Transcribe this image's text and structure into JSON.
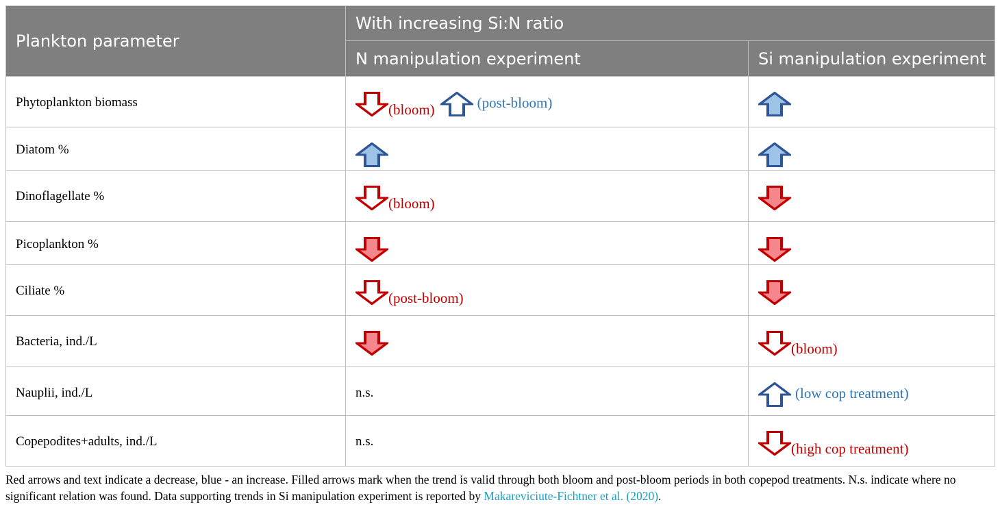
{
  "header": {
    "col1": "Plankton parameter",
    "group": "With increasing Si:N ratio",
    "col2": "N manipulation experiment",
    "col3": "Si manipulation experiment"
  },
  "colors": {
    "decrease": "#c00000",
    "decrease_fill": "#f4868c",
    "increase": "#2f5597",
    "increase_fill": "#9dc3e6",
    "header_bg": "#7f7f7f"
  },
  "rows": [
    {
      "param": "Phytoplankton biomass",
      "n": [
        {
          "dir": "down",
          "filled": false,
          "note": "(bloom)"
        },
        {
          "dir": "up",
          "filled": false,
          "note": "(post-bloom)"
        }
      ],
      "si": [
        {
          "dir": "up",
          "filled": true,
          "note": ""
        }
      ]
    },
    {
      "param": "Diatom %",
      "n": [
        {
          "dir": "up",
          "filled": true,
          "note": ""
        }
      ],
      "si": [
        {
          "dir": "up",
          "filled": true,
          "note": ""
        }
      ]
    },
    {
      "param": "Dinoflagellate %",
      "n": [
        {
          "dir": "down",
          "filled": false,
          "note": "(bloom)"
        }
      ],
      "si": [
        {
          "dir": "down",
          "filled": true,
          "note": ""
        }
      ]
    },
    {
      "param": "Picoplankton %",
      "n": [
        {
          "dir": "down",
          "filled": true,
          "note": ""
        }
      ],
      "si": [
        {
          "dir": "down",
          "filled": true,
          "note": ""
        }
      ]
    },
    {
      "param": "Ciliate %",
      "n": [
        {
          "dir": "down",
          "filled": false,
          "note": "(post-bloom)"
        }
      ],
      "si": [
        {
          "dir": "down",
          "filled": true,
          "note": ""
        }
      ]
    },
    {
      "param": "Bacteria, ind./L",
      "n": [
        {
          "dir": "down",
          "filled": true,
          "note": ""
        }
      ],
      "si": [
        {
          "dir": "down",
          "filled": false,
          "note": "(bloom)"
        }
      ]
    },
    {
      "param": "Nauplii, ind./L",
      "n_text": "n.s.",
      "si": [
        {
          "dir": "up",
          "filled": false,
          "note": "(low cop treatment)"
        }
      ]
    },
    {
      "param": "Copepodites+adults, ind./L",
      "n_text": "n.s.",
      "si": [
        {
          "dir": "down",
          "filled": false,
          "note": "(high cop treatment)"
        }
      ]
    }
  ],
  "footnote": {
    "text": "Red arrows and text indicate a decrease, blue - an increase. Filled arrows mark when the trend is valid through both bloom and post-bloom periods in both copepod treatments. N.s. indicate where no significant relation was found. Data supporting trends in Si manipulation experiment is reported by ",
    "link": "Makareviciute-Fichtner et al. (2020)",
    "end": "."
  }
}
